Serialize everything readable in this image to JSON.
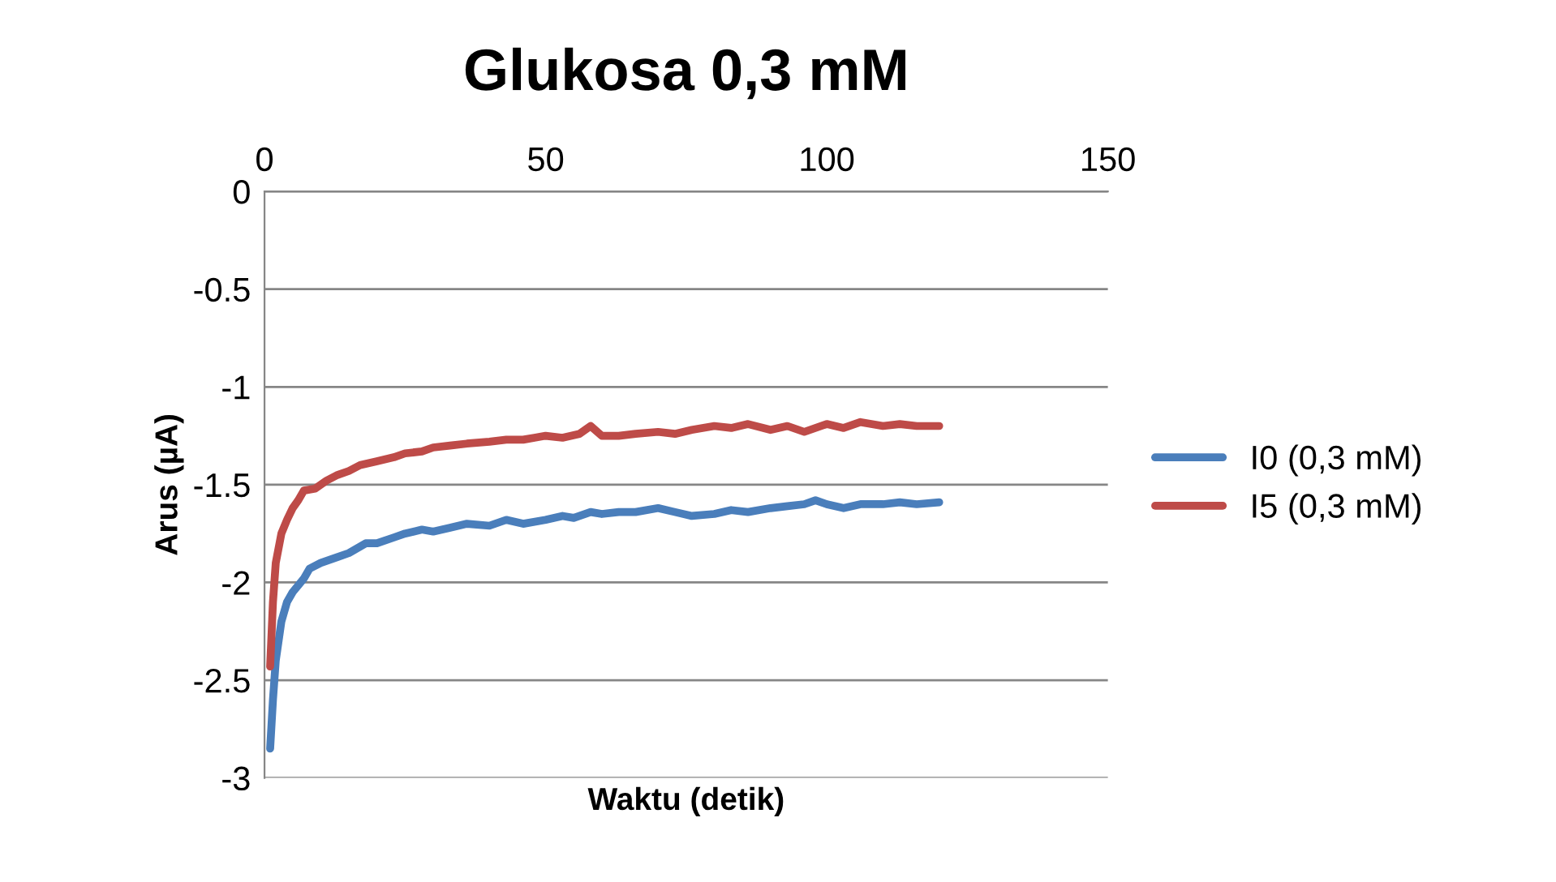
{
  "chart_data": {
    "type": "line",
    "title": "Glukosa 0,3 mM",
    "xlabel": "Waktu (detik)",
    "ylabel": "Arus (µA)",
    "xlim": [
      0,
      150
    ],
    "xticks": [
      0,
      50,
      100,
      150
    ],
    "ylim": [
      -3,
      0
    ],
    "yticks": [
      -3,
      -2.5,
      -2,
      -1.5,
      -1,
      -0.5,
      0
    ],
    "grid": "y",
    "legend": "right",
    "marker": "none",
    "line_style": "solid",
    "series": [
      {
        "name": "I0 (0,3 mM)",
        "color": "#4a7ebb",
        "x": [
          1,
          1.5,
          2,
          3,
          4,
          5,
          7,
          8,
          10,
          13,
          15,
          18,
          20,
          23,
          25,
          28,
          30,
          33,
          36,
          40,
          43,
          46,
          50,
          53,
          55,
          58,
          60,
          63,
          66,
          70,
          73,
          76,
          80,
          83,
          86,
          90,
          93,
          96,
          98,
          100,
          103,
          106,
          110,
          113,
          116,
          120
        ],
        "values": [
          -2.85,
          -2.6,
          -2.4,
          -2.2,
          -2.1,
          -2.05,
          -1.98,
          -1.93,
          -1.9,
          -1.87,
          -1.85,
          -1.8,
          -1.8,
          -1.77,
          -1.75,
          -1.73,
          -1.74,
          -1.72,
          -1.7,
          -1.71,
          -1.68,
          -1.7,
          -1.68,
          -1.66,
          -1.67,
          -1.64,
          -1.65,
          -1.64,
          -1.64,
          -1.62,
          -1.64,
          -1.66,
          -1.65,
          -1.63,
          -1.64,
          -1.62,
          -1.61,
          -1.6,
          -1.58,
          -1.6,
          -1.62,
          -1.6,
          -1.6,
          -1.59,
          -1.6,
          -1.59
        ]
      },
      {
        "name": "I5 (0,3 mM)",
        "color": "#be4b48",
        "x": [
          1,
          1.5,
          2,
          3,
          4,
          5,
          6,
          7,
          9,
          11,
          13,
          15,
          17,
          20,
          23,
          25,
          28,
          30,
          33,
          36,
          40,
          43,
          46,
          48,
          50,
          53,
          56,
          58,
          60,
          63,
          66,
          70,
          73,
          76,
          80,
          83,
          86,
          90,
          93,
          96,
          100,
          103,
          106,
          110,
          113,
          116,
          120
        ],
        "values": [
          -2.43,
          -2.1,
          -1.9,
          -1.75,
          -1.68,
          -1.62,
          -1.58,
          -1.53,
          -1.52,
          -1.48,
          -1.45,
          -1.43,
          -1.4,
          -1.38,
          -1.36,
          -1.34,
          -1.33,
          -1.31,
          -1.3,
          -1.29,
          -1.28,
          -1.27,
          -1.27,
          -1.26,
          -1.25,
          -1.26,
          -1.24,
          -1.2,
          -1.25,
          -1.25,
          -1.24,
          -1.23,
          -1.24,
          -1.22,
          -1.2,
          -1.21,
          -1.19,
          -1.22,
          -1.2,
          -1.23,
          -1.19,
          -1.21,
          -1.18,
          -1.2,
          -1.19,
          -1.2,
          -1.2
        ]
      }
    ]
  }
}
